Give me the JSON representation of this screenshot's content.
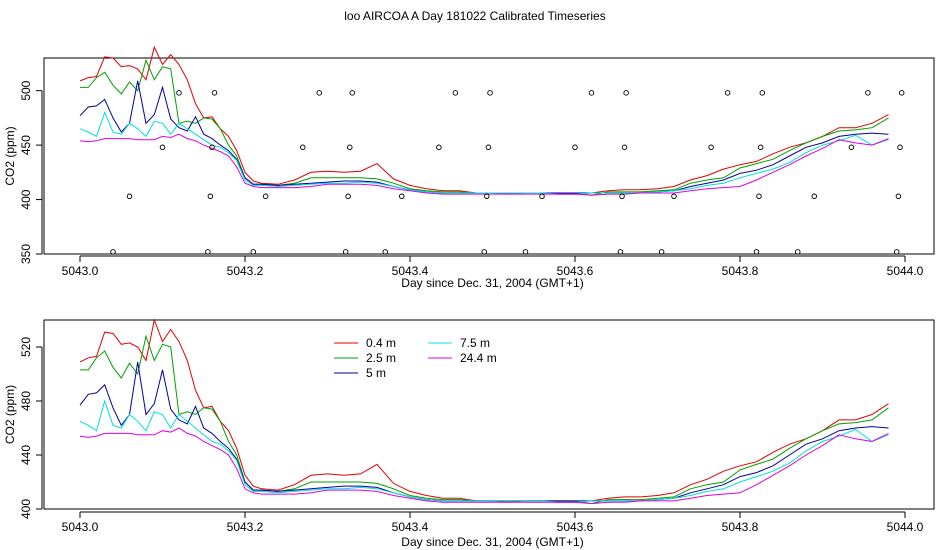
{
  "title": "loo AIRCOA A  Day 181022  Calibrated Timeseries",
  "chart_data": [
    {
      "type": "line",
      "xlabel": "Day since Dec. 31, 2004 (GMT+1)",
      "ylabel": "CO2 (ppm)",
      "xlim": [
        5043.0,
        5044.0
      ],
      "ylim": [
        350,
        530
      ],
      "x_ticks": [
        "5043.0",
        "5043.2",
        "5043.4",
        "5043.6",
        "5043.8",
        "5044.0"
      ],
      "y_ticks": [
        "350",
        "400",
        "450",
        "500"
      ],
      "markers": {
        "x": [
          5043.04,
          5043.06,
          5043.1,
          5043.12,
          5043.155,
          5043.158,
          5043.16,
          5043.163,
          5043.21,
          5043.225,
          5043.27,
          5043.29,
          5043.322,
          5043.325,
          5043.327,
          5043.33,
          5043.37,
          5043.39,
          5043.435,
          5043.455,
          5043.49,
          5043.493,
          5043.495,
          5043.497,
          5043.54,
          5043.56,
          5043.6,
          5043.62,
          5043.655,
          5043.657,
          5043.66,
          5043.662,
          5043.705,
          5043.72,
          5043.765,
          5043.785,
          5043.82,
          5043.823,
          5043.825,
          5043.827,
          5043.87,
          5043.89,
          5043.935,
          5043.955,
          5043.99,
          5043.992,
          5043.994,
          5043.996
        ],
        "y": [
          352,
          403,
          448,
          498,
          352,
          403,
          448,
          498,
          352,
          403,
          448,
          498,
          352,
          403,
          448,
          498,
          352,
          403,
          448,
          498,
          352,
          403,
          448,
          498,
          352,
          403,
          448,
          498,
          352,
          403,
          448,
          498,
          352,
          403,
          448,
          498,
          352,
          403,
          448,
          498,
          352,
          403,
          448,
          498,
          352,
          403,
          448,
          498
        ]
      }
    },
    {
      "type": "line",
      "xlabel": "Day since Dec. 31, 2004 (GMT+1)",
      "ylabel": "CO2 (ppm)",
      "xlim": [
        5043.0,
        5044.0
      ],
      "ylim": [
        400,
        540
      ],
      "x_ticks": [
        "5043.0",
        "5043.2",
        "5043.4",
        "5043.6",
        "5043.8",
        "5044.0"
      ],
      "y_ticks": [
        "400",
        "440",
        "480",
        "520"
      ],
      "legend_position": "top-left"
    }
  ],
  "series_x": [
    5043.0,
    5043.01,
    5043.02,
    5043.03,
    5043.04,
    5043.05,
    5043.06,
    5043.07,
    5043.08,
    5043.09,
    5043.1,
    5043.11,
    5043.12,
    5043.13,
    5043.14,
    5043.15,
    5043.16,
    5043.17,
    5043.18,
    5043.19,
    5043.2,
    5043.21,
    5043.22,
    5043.24,
    5043.26,
    5043.28,
    5043.3,
    5043.32,
    5043.34,
    5043.36,
    5043.38,
    5043.4,
    5043.42,
    5043.44,
    5043.46,
    5043.48,
    5043.5,
    5043.52,
    5043.54,
    5043.56,
    5043.58,
    5043.6,
    5043.62,
    5043.64,
    5043.66,
    5043.68,
    5043.7,
    5043.72,
    5043.74,
    5043.76,
    5043.78,
    5043.8,
    5043.82,
    5043.84,
    5043.86,
    5043.88,
    5043.9,
    5043.92,
    5043.94,
    5043.96,
    5043.98
  ],
  "series": [
    {
      "name": "0.4 m",
      "color": "#e00000",
      "values": [
        509,
        512,
        513,
        531,
        530,
        522,
        523,
        520,
        510,
        540,
        524,
        533,
        524,
        510,
        488,
        475,
        476,
        465,
        458,
        445,
        425,
        417,
        415,
        414,
        418,
        425,
        426,
        425,
        426,
        433,
        419,
        413,
        410,
        408,
        408,
        406,
        406,
        405,
        406,
        406,
        405,
        405,
        406,
        408,
        409,
        409,
        410,
        412,
        418,
        422,
        428,
        432,
        435,
        442,
        448,
        452,
        458,
        466,
        466,
        470,
        478
      ]
    },
    {
      "name": "2.5 m",
      "color": "#00a000",
      "values": [
        503,
        503,
        512,
        517,
        505,
        497,
        508,
        500,
        528,
        510,
        522,
        520,
        470,
        472,
        470,
        475,
        474,
        465,
        450,
        440,
        420,
        414,
        414,
        413,
        415,
        420,
        420,
        420,
        420,
        419,
        415,
        410,
        408,
        407,
        407,
        406,
        406,
        406,
        406,
        406,
        406,
        406,
        404,
        407,
        407,
        407,
        408,
        409,
        415,
        418,
        420,
        429,
        433,
        437,
        445,
        452,
        458,
        463,
        464,
        466,
        475
      ]
    },
    {
      "name": "5 m",
      "color": "#0000a0",
      "values": [
        477,
        485,
        486,
        492,
        475,
        462,
        470,
        509,
        470,
        478,
        503,
        474,
        466,
        463,
        476,
        460,
        456,
        450,
        445,
        437,
        420,
        414,
        414,
        413,
        414,
        415,
        416,
        417,
        417,
        416,
        412,
        409,
        407,
        406,
        406,
        406,
        406,
        406,
        406,
        406,
        406,
        406,
        406,
        406,
        406,
        406,
        407,
        408,
        412,
        415,
        418,
        424,
        427,
        432,
        440,
        448,
        452,
        458,
        460,
        461,
        460
      ]
    },
    {
      "name": "7.5 m",
      "color": "#00e0e0",
      "values": [
        465,
        462,
        458,
        480,
        462,
        460,
        470,
        465,
        458,
        472,
        470,
        460,
        470,
        465,
        460,
        455,
        450,
        448,
        443,
        436,
        418,
        413,
        413,
        412,
        413,
        414,
        415,
        415,
        416,
        415,
        412,
        409,
        407,
        406,
        406,
        406,
        406,
        406,
        406,
        406,
        405,
        405,
        406,
        406,
        406,
        406,
        407,
        408,
        410,
        413,
        415,
        420,
        424,
        428,
        434,
        443,
        450,
        454,
        459,
        450,
        455
      ]
    },
    {
      "name": "24.4 m",
      "color": "#e000e0",
      "values": [
        454,
        453,
        454,
        456,
        456,
        456,
        456,
        455,
        455,
        455,
        458,
        457,
        460,
        456,
        454,
        450,
        447,
        444,
        440,
        430,
        415,
        412,
        411,
        411,
        411,
        412,
        414,
        414,
        414,
        413,
        410,
        408,
        406,
        405,
        405,
        405,
        405,
        405,
        405,
        405,
        405,
        405,
        404,
        405,
        405,
        406,
        406,
        406,
        408,
        410,
        411,
        412,
        418,
        425,
        432,
        440,
        447,
        455,
        452,
        450,
        456
      ]
    }
  ]
}
